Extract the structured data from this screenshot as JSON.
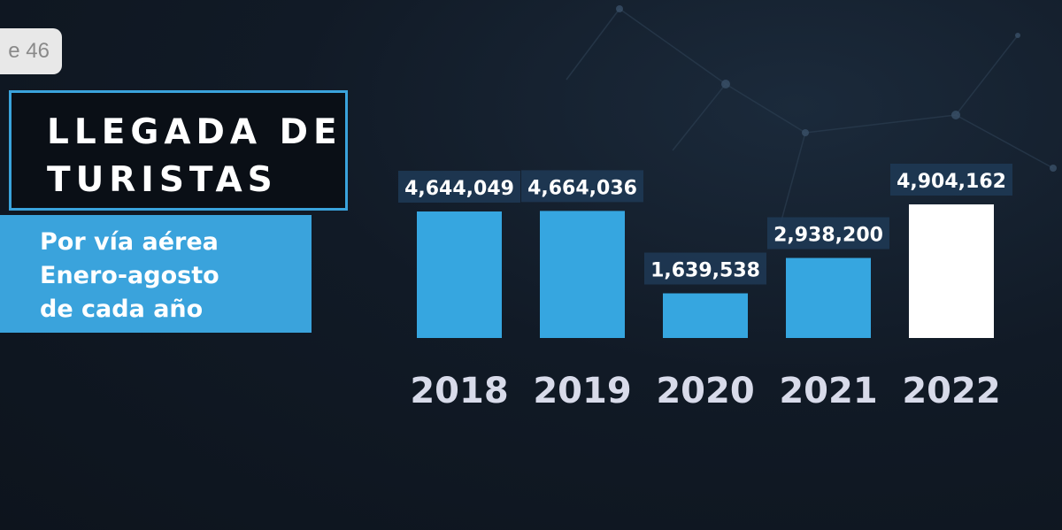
{
  "slide_badge": "e 46",
  "title": "LLEGADA DE\nTURISTAS",
  "subtitle": "Por vía aérea\nEnero-agosto\nde cada año",
  "colors": {
    "bar": "#36a6e0",
    "bar_highlight": "#ffffff",
    "label_bg": "#1f3a56",
    "label_text": "#ffffff",
    "year_text": "#d8dbea"
  },
  "chart_data": {
    "type": "bar",
    "categories": [
      "2018",
      "2019",
      "2020",
      "2021",
      "2022"
    ],
    "values": [
      4644049,
      4664036,
      1639538,
      2938200,
      4904162
    ],
    "value_labels": [
      "4,644,049",
      "4,664,036",
      "1,639,538",
      "2,938,200",
      "4,904,162"
    ],
    "highlight_index": 4,
    "grid": false,
    "legend": "none"
  }
}
